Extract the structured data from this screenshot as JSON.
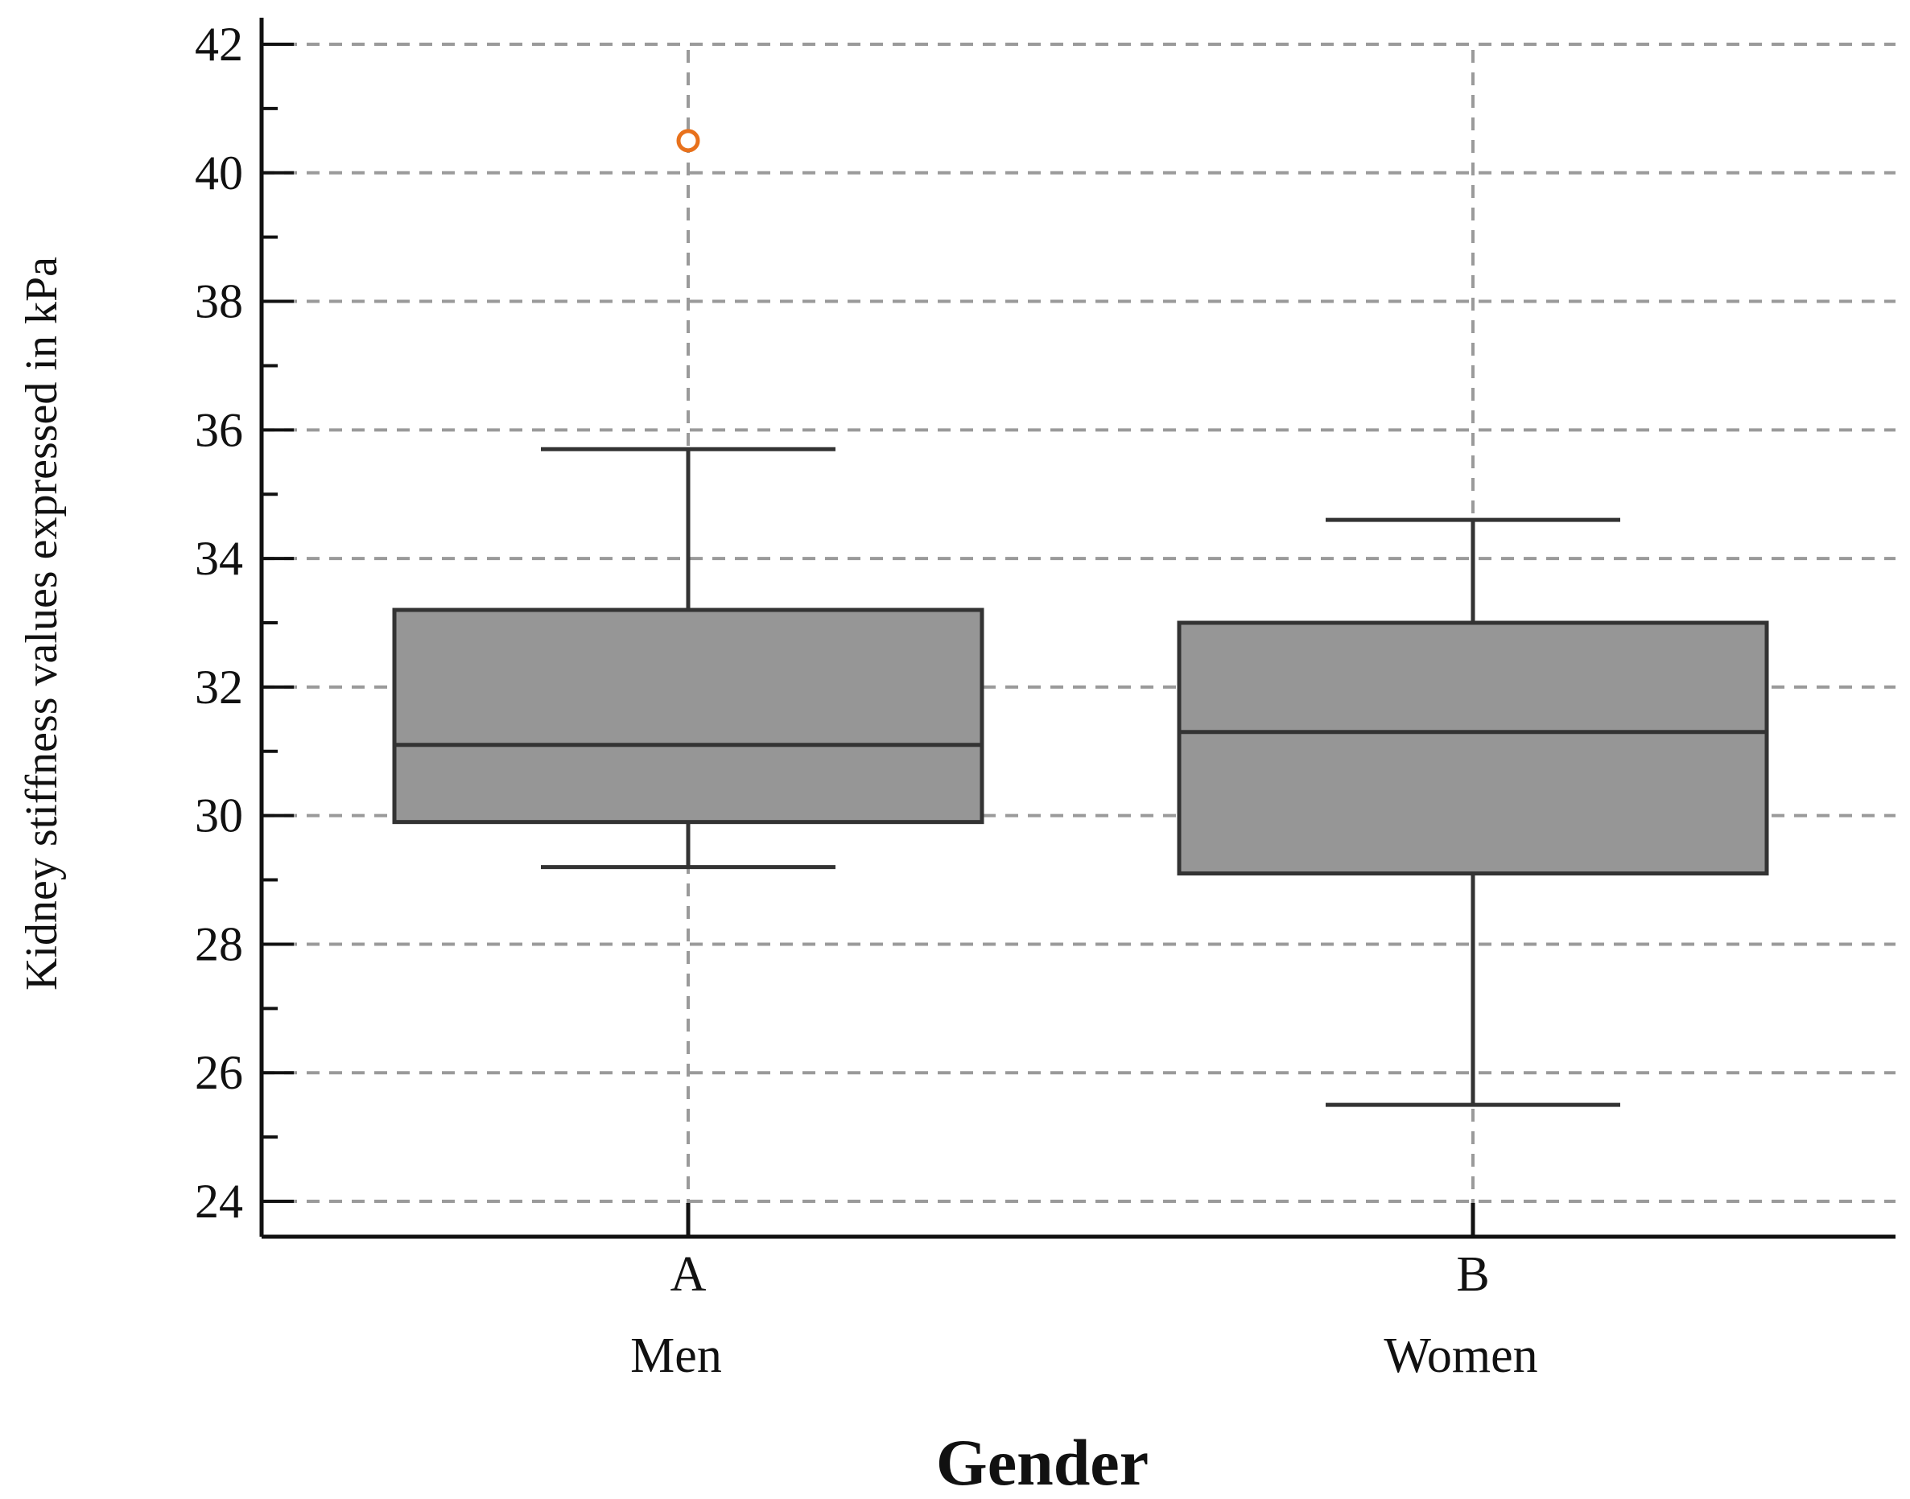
{
  "chart_data": {
    "type": "box",
    "xlabel": "Gender",
    "ylabel": "Kidney stiffness values expressed in kPa",
    "ylim": [
      23.4,
      42.5
    ],
    "yticks": [
      24,
      26,
      28,
      30,
      32,
      34,
      36,
      38,
      40,
      42
    ],
    "grid": true,
    "categories": [
      {
        "label": "A",
        "sublabel": "Men",
        "whisker_low": 29.2,
        "q1": 29.9,
        "median": 31.1,
        "q3": 33.2,
        "whisker_high": 35.7,
        "outliers": [
          40.5
        ]
      },
      {
        "label": "B",
        "sublabel": "Women",
        "whisker_low": 25.5,
        "q1": 29.1,
        "median": 31.3,
        "q3": 33.0,
        "whisker_high": 34.6,
        "outliers": []
      }
    ],
    "colors": {
      "box_fill": "#969696",
      "box_stroke": "#333333",
      "grid": "#9a9a9a",
      "outlier": "#e8711c",
      "axis": "#111111"
    }
  }
}
